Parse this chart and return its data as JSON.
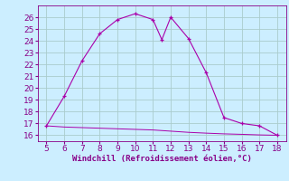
{
  "xlabel": "Windchill (Refroidissement éolien,°C)",
  "bg_color": "#cceeff",
  "grid_color": "#aacccc",
  "line_color": "#aa00aa",
  "x_temp": [
    5,
    6,
    7,
    8,
    9,
    10,
    11,
    11.5,
    12,
    13,
    14,
    15,
    16,
    17,
    18
  ],
  "y_temp": [
    16.8,
    19.3,
    22.3,
    24.6,
    25.8,
    26.3,
    25.8,
    24.1,
    26.0,
    24.2,
    21.3,
    17.5,
    17.0,
    16.8,
    16.0
  ],
  "x_wind": [
    5,
    6,
    7,
    8,
    9,
    10,
    11,
    12,
    13,
    14,
    15,
    16,
    17,
    18
  ],
  "y_wind": [
    16.8,
    16.7,
    16.65,
    16.6,
    16.55,
    16.5,
    16.45,
    16.35,
    16.25,
    16.18,
    16.12,
    16.08,
    16.03,
    16.0
  ],
  "xlim": [
    4.5,
    18.5
  ],
  "ylim": [
    15.5,
    27
  ],
  "xticks": [
    5,
    6,
    7,
    8,
    9,
    10,
    11,
    12,
    13,
    14,
    15,
    16,
    17,
    18
  ],
  "yticks": [
    16,
    17,
    18,
    19,
    20,
    21,
    22,
    23,
    24,
    25,
    26
  ],
  "xlabel_fontsize": 6.5,
  "tick_fontsize": 6.5,
  "tick_color": "#880088"
}
